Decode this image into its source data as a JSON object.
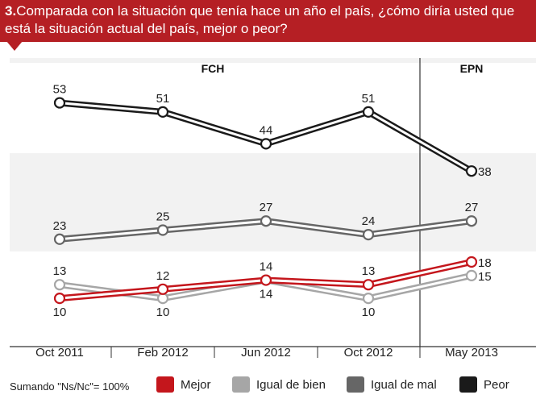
{
  "header": {
    "number": "3.",
    "question": "Comparada con la situación que tenía hace un año el país, ¿cómo diría usted que está la situación actual del país, mejor o peor?"
  },
  "periods": [
    {
      "label": "FCH"
    },
    {
      "label": "EPN"
    }
  ],
  "legend": {
    "note": "Sumando \"Ns/Nc\"= 100%",
    "items": [
      {
        "label": "Mejor",
        "color": "#c4161c"
      },
      {
        "label": "Igual de bien",
        "color": "#a6a6a6"
      },
      {
        "label": "Igual de mal",
        "color": "#666666"
      },
      {
        "label": "Peor",
        "color": "#1a1a1a"
      }
    ]
  },
  "chart_data": {
    "type": "line",
    "categories": [
      "Oct 2011",
      "Feb 2012",
      "Jun 2012",
      "Oct 2012",
      "May 2013"
    ],
    "series": [
      {
        "name": "Peor",
        "values": [
          53,
          51,
          44,
          51,
          38
        ],
        "color": "#1a1a1a"
      },
      {
        "name": "Igual de mal",
        "values": [
          23,
          25,
          27,
          24,
          27
        ],
        "color": "#666666"
      },
      {
        "name": "Igual de bien",
        "values": [
          13,
          10,
          14,
          10,
          15
        ],
        "color": "#a6a6a6"
      },
      {
        "name": "Mejor",
        "values": [
          10,
          12,
          14,
          13,
          18
        ],
        "color": "#c4161c"
      }
    ],
    "grid": false,
    "legend_position": "bottom"
  }
}
